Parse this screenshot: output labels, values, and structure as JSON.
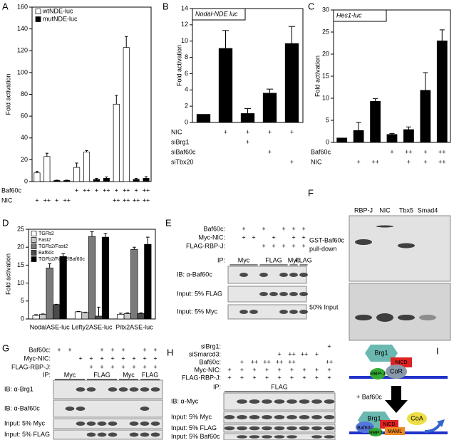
{
  "panel_letters": [
    "A",
    "B",
    "C",
    "D",
    "E",
    "F",
    "G",
    "H",
    "I"
  ],
  "chart_data": [
    {
      "type": "bar",
      "ylabel": "Fold activation",
      "ylim": [
        0,
        160
      ],
      "yticks": [
        0,
        20,
        40,
        60,
        80,
        100,
        120,
        140,
        160
      ],
      "series": [
        {
          "name": "wtNDE-luc",
          "color": "#ffffff",
          "values": [
            8,
            23,
            null,
            null,
            13,
            27,
            null,
            null,
            71,
            123,
            null,
            null
          ],
          "errors": [
            1.5,
            3,
            null,
            null,
            4,
            1.5,
            null,
            null,
            8,
            10,
            null,
            null
          ]
        },
        {
          "name": "mutNDE-luc",
          "color": "#000000",
          "values": [
            null,
            null,
            1,
            1,
            null,
            null,
            2,
            3,
            null,
            null,
            2,
            3
          ],
          "errors": [
            null,
            null,
            0.3,
            0.3,
            null,
            null,
            1,
            1.2,
            null,
            null,
            1,
            1.5
          ]
        }
      ],
      "conditions": [
        {
          "label": "Baf60c",
          "marks": [
            null,
            null,
            null,
            null,
            "+",
            "++",
            "+",
            "++",
            "+",
            "++",
            "+",
            "++"
          ]
        },
        {
          "label": "NIC",
          "marks": [
            "+",
            "++",
            "+",
            "++",
            null,
            null,
            null,
            null,
            "++",
            "++",
            "++",
            "++"
          ]
        }
      ]
    },
    {
      "type": "bar",
      "title": "Nodal-NDE luc",
      "ylabel": "Fold activation",
      "ylim": [
        0,
        14
      ],
      "yticks": [
        0,
        2,
        4,
        6,
        8,
        10,
        12,
        14
      ],
      "color": "#000000",
      "values": [
        1,
        9.1,
        1.1,
        3.6,
        9.7
      ],
      "errors": [
        0,
        2.2,
        0.6,
        0.5,
        2.1
      ],
      "conditions": [
        {
          "label": "NIC",
          "marks": [
            null,
            "+",
            "+",
            "+",
            "+"
          ]
        },
        {
          "label": "siBrg1",
          "marks": [
            null,
            null,
            "+",
            null,
            null
          ]
        },
        {
          "label": "siBaf60c",
          "marks": [
            null,
            null,
            null,
            "+",
            null
          ]
        },
        {
          "label": "siTbx20",
          "marks": [
            null,
            null,
            null,
            null,
            "+"
          ]
        }
      ]
    },
    {
      "type": "bar",
      "title": "Hes1-luc",
      "ylabel": "Fold activation",
      "ylim": [
        0,
        30
      ],
      "yticks": [
        0,
        5,
        10,
        15,
        20,
        25,
        30
      ],
      "color": "#000000",
      "values": [
        1,
        2.7,
        9.3,
        1.8,
        2.9,
        11.8,
        23
      ],
      "errors": [
        0,
        1.8,
        0.6,
        0.2,
        0.6,
        4,
        2.5
      ],
      "conditions": [
        {
          "label": "Baf60c",
          "marks": [
            null,
            null,
            null,
            "+",
            "++",
            "+",
            "++"
          ]
        },
        {
          "label": "NIC",
          "marks": [
            null,
            "+",
            "++",
            null,
            "+",
            "+",
            "++"
          ]
        }
      ]
    },
    {
      "type": "bar",
      "ylabel": "Fold activation",
      "ylim": [
        0,
        25
      ],
      "yticks": [
        0,
        5,
        10,
        15,
        20,
        25
      ],
      "categories": [
        "NodalASE-luc",
        "Lefty2ASE-luc",
        "Pitx2ASE-luc"
      ],
      "series": [
        {
          "name": "TGFb2",
          "color": "#ffffff",
          "values": [
            1,
            2,
            1.3
          ],
          "errors": [
            0.2,
            0.1,
            0.3
          ]
        },
        {
          "name": "Fast2",
          "color": "#c8c8c8",
          "values": [
            1.3,
            1.8,
            1.5
          ],
          "errors": [
            0.1,
            0.1,
            0.2
          ]
        },
        {
          "name": "TGFb2/Fast2",
          "color": "#7a7a7a",
          "values": [
            14.2,
            23,
            19.4
          ],
          "errors": [
            1.2,
            1.3,
            0.6
          ]
        },
        {
          "name": "Baf60c",
          "color": "#4a4a4a",
          "values": [
            4,
            0.8,
            1.5
          ],
          "errors": [
            0.1,
            2.5,
            0.2
          ]
        },
        {
          "name": "TGFb2/Fast2/Baf60c",
          "color": "#000000",
          "values": [
            17.4,
            22.8,
            20.8
          ],
          "errors": [
            0.8,
            1,
            2
          ]
        }
      ]
    }
  ],
  "blots": {
    "E": {
      "conditions": [
        {
          "label": "Baf60c:",
          "marks": [
            null,
            "+",
            null,
            "+",
            null,
            "+",
            "+",
            "+"
          ]
        },
        {
          "label": "Myc-NIC:",
          "marks": [
            null,
            "+",
            "+",
            null,
            "+",
            null,
            "+",
            "+"
          ]
        },
        {
          "label": "FLAG-RBP-J:",
          "marks": [
            null,
            null,
            null,
            "+",
            "+",
            "+",
            "+",
            "+"
          ]
        }
      ],
      "ip_label": "IP:",
      "ip_groups": [
        "Myc",
        "FLAG",
        "Myc",
        "FLAG"
      ],
      "rows": [
        "IB: α-Baf60c",
        "Input: 5% FLAG",
        "Input: 5% Myc"
      ]
    },
    "G": {
      "conditions": [
        {
          "label": "Baf60c:",
          "marks": [
            "+",
            "+",
            null,
            null,
            "+",
            "+",
            "+",
            null,
            "+",
            "+"
          ]
        },
        {
          "label": "Myc-NIC:",
          "marks": [
            null,
            null,
            "+",
            "+",
            "+",
            "+",
            "+",
            "+",
            "+",
            "+"
          ]
        },
        {
          "label": "FLAG-RBP-J:",
          "marks": [
            null,
            null,
            null,
            "+",
            "+",
            "+",
            "+",
            "+",
            "+",
            "+"
          ]
        }
      ],
      "ip_label": "IP:",
      "ip_groups": [
        "Myc",
        "FLAG",
        "Myc",
        "FLAG"
      ],
      "rows": [
        "IB: α-Brg1",
        "IB: α-Baf60c",
        "Input: 5% Myc",
        "Input: 5% FLAG"
      ]
    },
    "H": {
      "conditions": [
        {
          "label": "siBrg1:",
          "marks": [
            null,
            null,
            null,
            null,
            null,
            null,
            null,
            null,
            "+"
          ]
        },
        {
          "label": "siSmarcd3:",
          "marks": [
            null,
            null,
            null,
            null,
            "+",
            "++",
            "++",
            "+",
            null
          ]
        },
        {
          "label": "Baf60c:",
          "marks": [
            null,
            "+",
            "++",
            "++",
            "++",
            "++",
            null,
            null,
            "++"
          ]
        },
        {
          "label": "Myc-NIC:",
          "marks": [
            "+",
            "+",
            "+",
            "+",
            "+",
            "+",
            "+",
            "+",
            "+"
          ]
        },
        {
          "label": "FLAG-RBP-J:",
          "marks": [
            "+",
            "+",
            "+",
            "+",
            "+",
            "+",
            "+",
            "+",
            "+"
          ]
        }
      ],
      "ip_label": "IP:",
      "ip_groups": [
        "FLAG"
      ],
      "rows": [
        "IB: α-Myc",
        "Input: 5% Myc",
        "Input: 5% FLAG",
        "Input: 5% Baf60c"
      ]
    }
  },
  "pulldown": {
    "lanes": [
      "RBP-J",
      "NIC",
      "Tbx5",
      "Smad4"
    ],
    "top_label": [
      "GST-Baf60c",
      "pull-down"
    ],
    "bottom_label": "50% Input"
  },
  "diagram": {
    "top": [
      "Brg1",
      "NICD",
      "RBP-J",
      "CoR"
    ],
    "arrow_label": "+ Baf60c",
    "bottom": [
      "Brg1",
      "Baf60c",
      "NICD",
      "CoA",
      "MAML",
      "RBPJ"
    ]
  }
}
